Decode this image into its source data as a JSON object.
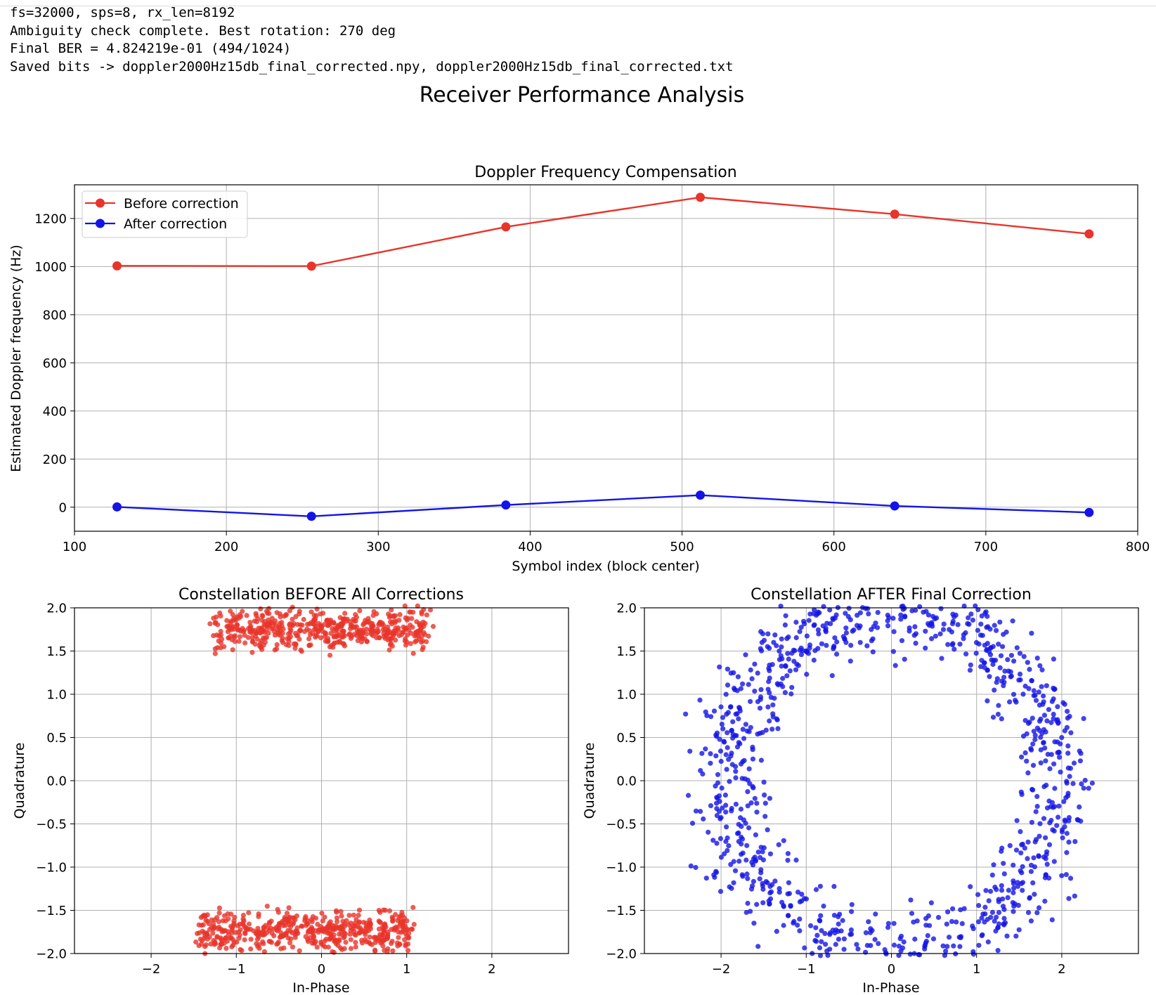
{
  "console": {
    "lines": [
      "fs=32000, sps=8, rx_len=8192",
      "Ambiguity check complete. Best rotation: 270 deg",
      "Final BER = 4.824219e-01 (494/1024)",
      "Saved bits -> doppler2000Hz15db_final_corrected.npy, doppler2000Hz15db_final_corrected.txt"
    ]
  },
  "figure": {
    "suptitle": "Receiver Performance Analysis"
  },
  "chart_data": [
    {
      "type": "line",
      "title": "Doppler Frequency Compensation",
      "xlabel": "Symbol index (block center)",
      "ylabel": "Estimated Doppler frequency (Hz)",
      "xlim": [
        100,
        800
      ],
      "ylim": [
        -100,
        1340
      ],
      "xticks": [
        100,
        200,
        300,
        400,
        500,
        600,
        700,
        800
      ],
      "yticks": [
        0,
        200,
        400,
        600,
        800,
        1000,
        1200
      ],
      "grid": true,
      "legend": "top-left",
      "x": [
        128,
        256,
        384,
        512,
        640,
        768
      ],
      "series": [
        {
          "name": "Before correction",
          "color": "#e8342a",
          "values": [
            1003,
            1002,
            1165,
            1288,
            1218,
            1136
          ]
        },
        {
          "name": "After correction",
          "color": "#1414e6",
          "values": [
            1,
            -38,
            9,
            50,
            5,
            -22
          ]
        }
      ]
    },
    {
      "type": "scatter",
      "title": "Constellation BEFORE All Corrections",
      "xlabel": "In-Phase",
      "ylabel": "Quadrature",
      "xlim": [
        -2.9,
        2.9
      ],
      "ylim": [
        -2.0,
        2.0
      ],
      "xticks": [
        -2,
        -1,
        0,
        1,
        2
      ],
      "yticks": [
        -2.0,
        -1.5,
        -1.0,
        -0.5,
        0.0,
        0.5,
        1.0,
        1.5,
        2.0
      ],
      "grid": true,
      "color": "#e8342a",
      "clusters": [
        {
          "x_center": 0.0,
          "x_halfwidth": 1.25,
          "y_center": 1.75,
          "y_spread": 0.12,
          "count": 512
        },
        {
          "x_center": -0.2,
          "x_halfwidth": 1.25,
          "y_center": -1.75,
          "y_spread": 0.12,
          "count": 512
        }
      ]
    },
    {
      "type": "scatter",
      "title": "Constellation AFTER Final Correction",
      "xlabel": "In-Phase",
      "ylabel": "Quadrature",
      "xlim": [
        -2.9,
        2.9
      ],
      "ylim": [
        -2.0,
        2.0
      ],
      "xticks": [
        -2,
        -1,
        0,
        1,
        2
      ],
      "yticks": [
        -2.0,
        -1.5,
        -1.0,
        -0.5,
        0.0,
        0.5,
        1.0,
        1.5,
        2.0
      ],
      "grid": true,
      "color": "#1414e6",
      "ring": {
        "radius": 1.95,
        "spread": 0.22,
        "count": 1024
      }
    }
  ]
}
